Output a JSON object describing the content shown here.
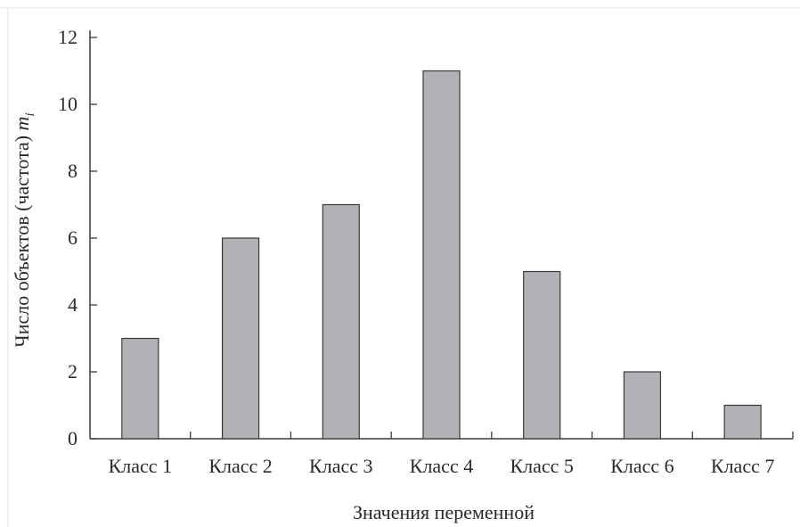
{
  "chart_data": {
    "type": "bar",
    "categories": [
      "Класс 1",
      "Класс 2",
      "Класс 3",
      "Класс 4",
      "Класс 5",
      "Класс 6",
      "Класс 7"
    ],
    "values": [
      3,
      6,
      7,
      11,
      5,
      2,
      1
    ],
    "title": "",
    "xlabel": "Значения переменной",
    "ylabel": "Число объектов (частота)",
    "ylabel_var": "m",
    "ylabel_sub": "i",
    "ylim": [
      0,
      12
    ],
    "yticks": [
      0,
      2,
      4,
      6,
      8,
      10,
      12
    ],
    "grid": false,
    "legend": "none",
    "colors": {
      "bar": "#b2b2b6",
      "axis": "#3a3a3a",
      "text": "#2a2a2a"
    }
  }
}
